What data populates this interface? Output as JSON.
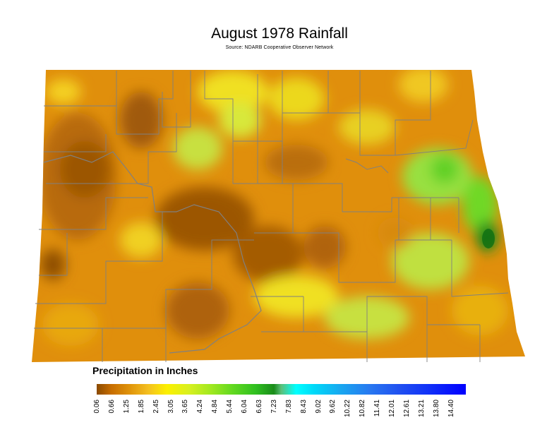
{
  "title": "August 1978 Rainfall",
  "subtitle": "Source: NDARB Cooperative Observer Network",
  "legend": {
    "title": "Precipitation in Inches",
    "ticks": [
      "0.06",
      "0.66",
      "1.25",
      "1.85",
      "2.45",
      "3.05",
      "3.65",
      "4.24",
      "4.84",
      "5.44",
      "6.04",
      "6.63",
      "7.23",
      "7.83",
      "8.43",
      "9.02",
      "9.62",
      "10.22",
      "10.82",
      "11.41",
      "12.01",
      "12.61",
      "13.21",
      "13.80",
      "14.40"
    ]
  },
  "colors": {
    "dry": "#c86e00",
    "very_dry": "#8b4a00",
    "moderate": "#fcf000",
    "wet": "#60d820",
    "very_wet": "#1a8c1a",
    "county_lines": "#808080"
  }
}
